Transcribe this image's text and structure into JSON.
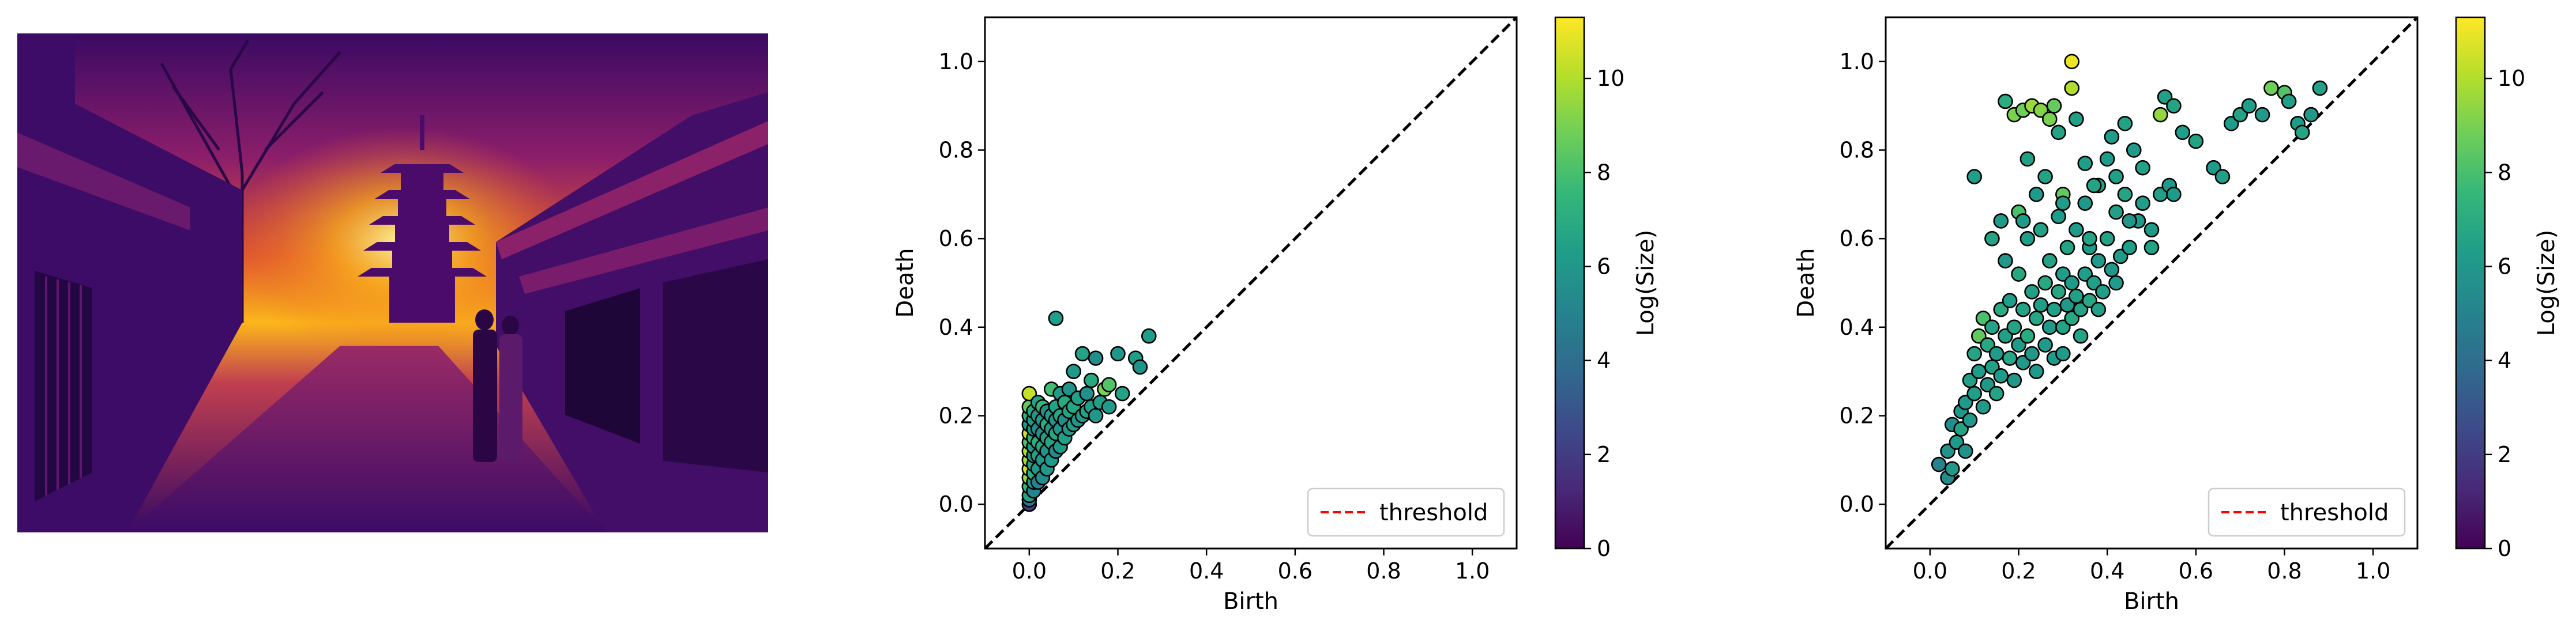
{
  "image_panel": {
    "description": "Photograph of a street with a pagoda at sunset, shown in inferno colormap",
    "palette": [
      "#000004",
      "#320a5e",
      "#781c6d",
      "#bc3754",
      "#ed6925",
      "#fbb61a",
      "#fcffa4"
    ]
  },
  "colors": {
    "threshold": "#ff0000",
    "diagonal": "#000000",
    "marker_edge": "#000000",
    "viridis": [
      "#440154",
      "#482878",
      "#3e4989",
      "#31688e",
      "#26828e",
      "#1f9e89",
      "#35b779",
      "#6ece58",
      "#b5de2b",
      "#fde725"
    ]
  },
  "chart_data": [
    {
      "type": "scatter",
      "title": "",
      "xlabel": "Birth",
      "ylabel": "Death",
      "xlim": [
        -0.1,
        1.1
      ],
      "ylim": [
        -0.1,
        1.1
      ],
      "xticks": [
        "0.0",
        "0.2",
        "0.4",
        "0.6",
        "0.8",
        "1.0"
      ],
      "yticks": [
        "0.0",
        "0.2",
        "0.4",
        "0.6",
        "0.8",
        "1.0"
      ],
      "diagonal": true,
      "legend": {
        "label": "threshold",
        "placement": "lower-right"
      },
      "colorbar": {
        "label": "Log(Size)",
        "range": [
          0,
          11.3
        ],
        "ticks": [
          "0",
          "2",
          "4",
          "6",
          "8",
          "10"
        ]
      },
      "points": [
        [
          0.0,
          0.0,
          2.0
        ],
        [
          0.0,
          0.01,
          4.5
        ],
        [
          0.0,
          0.02,
          6.5
        ],
        [
          0.0,
          0.04,
          7.5
        ],
        [
          0.0,
          0.06,
          9.5
        ],
        [
          0.0,
          0.08,
          10.5
        ],
        [
          0.0,
          0.1,
          9.8
        ],
        [
          0.0,
          0.12,
          10.0
        ],
        [
          0.0,
          0.14,
          8.0
        ],
        [
          0.0,
          0.16,
          10.5
        ],
        [
          0.0,
          0.18,
          6.0
        ],
        [
          0.0,
          0.2,
          7.0
        ],
        [
          0.0,
          0.22,
          8.5
        ],
        [
          0.0,
          0.25,
          10.3
        ],
        [
          0.01,
          0.03,
          5.0
        ],
        [
          0.01,
          0.05,
          6.0
        ],
        [
          0.01,
          0.07,
          7.0
        ],
        [
          0.01,
          0.09,
          6.5
        ],
        [
          0.01,
          0.11,
          5.5
        ],
        [
          0.01,
          0.13,
          6.0
        ],
        [
          0.01,
          0.15,
          7.2
        ],
        [
          0.01,
          0.17,
          5.8
        ],
        [
          0.01,
          0.19,
          6.2
        ],
        [
          0.01,
          0.21,
          6.8
        ],
        [
          0.02,
          0.05,
          5.0
        ],
        [
          0.02,
          0.08,
          6.0
        ],
        [
          0.02,
          0.11,
          6.5
        ],
        [
          0.02,
          0.14,
          7.0
        ],
        [
          0.02,
          0.17,
          5.5
        ],
        [
          0.02,
          0.2,
          6.0
        ],
        [
          0.02,
          0.23,
          6.5
        ],
        [
          0.03,
          0.06,
          5.5
        ],
        [
          0.03,
          0.1,
          6.0
        ],
        [
          0.03,
          0.13,
          6.8
        ],
        [
          0.03,
          0.16,
          5.6
        ],
        [
          0.03,
          0.19,
          6.2
        ],
        [
          0.03,
          0.22,
          7.5
        ],
        [
          0.04,
          0.08,
          6.0
        ],
        [
          0.04,
          0.12,
          5.8
        ],
        [
          0.04,
          0.15,
          6.4
        ],
        [
          0.04,
          0.18,
          6.9
        ],
        [
          0.04,
          0.21,
          5.7
        ],
        [
          0.05,
          0.1,
          6.1
        ],
        [
          0.05,
          0.14,
          6.6
        ],
        [
          0.05,
          0.17,
          5.9
        ],
        [
          0.05,
          0.2,
          6.3
        ],
        [
          0.05,
          0.26,
          7.8
        ],
        [
          0.06,
          0.12,
          5.4
        ],
        [
          0.06,
          0.16,
          6.7
        ],
        [
          0.06,
          0.19,
          6.0
        ],
        [
          0.06,
          0.22,
          6.5
        ],
        [
          0.06,
          0.42,
          6.3
        ],
        [
          0.07,
          0.13,
          6.2
        ],
        [
          0.07,
          0.17,
          5.9
        ],
        [
          0.07,
          0.2,
          6.8
        ],
        [
          0.07,
          0.25,
          6.1
        ],
        [
          0.08,
          0.15,
          6.4
        ],
        [
          0.08,
          0.19,
          5.6
        ],
        [
          0.08,
          0.23,
          6.9
        ],
        [
          0.09,
          0.17,
          6.0
        ],
        [
          0.09,
          0.21,
          6.6
        ],
        [
          0.09,
          0.26,
          5.8
        ],
        [
          0.1,
          0.18,
          6.3
        ],
        [
          0.1,
          0.22,
          6.7
        ],
        [
          0.1,
          0.3,
          6.0
        ],
        [
          0.11,
          0.19,
          5.9
        ],
        [
          0.11,
          0.24,
          6.4
        ],
        [
          0.12,
          0.2,
          6.2
        ],
        [
          0.12,
          0.34,
          6.5
        ],
        [
          0.13,
          0.21,
          6.6
        ],
        [
          0.13,
          0.25,
          5.7
        ],
        [
          0.14,
          0.22,
          6.3
        ],
        [
          0.14,
          0.28,
          6.8
        ],
        [
          0.15,
          0.2,
          6.0
        ],
        [
          0.15,
          0.33,
          5.5
        ],
        [
          0.16,
          0.23,
          6.4
        ],
        [
          0.17,
          0.26,
          9.0
        ],
        [
          0.18,
          0.22,
          6.1
        ],
        [
          0.18,
          0.27,
          8.2
        ],
        [
          0.2,
          0.34,
          5.9
        ],
        [
          0.21,
          0.25,
          6.5
        ],
        [
          0.24,
          0.33,
          6.3
        ],
        [
          0.25,
          0.31,
          5.8
        ],
        [
          0.27,
          0.38,
          6.2
        ]
      ]
    },
    {
      "type": "scatter",
      "title": "",
      "xlabel": "Birth",
      "ylabel": "Death",
      "xlim": [
        -0.1,
        1.1
      ],
      "ylim": [
        -0.1,
        1.1
      ],
      "xticks": [
        "0.0",
        "0.2",
        "0.4",
        "0.6",
        "0.8",
        "1.0"
      ],
      "yticks": [
        "0.0",
        "0.2",
        "0.4",
        "0.6",
        "0.8",
        "1.0"
      ],
      "diagonal": true,
      "legend": {
        "label": "threshold",
        "placement": "lower-right"
      },
      "colorbar": {
        "label": "Log(Size)",
        "range": [
          0,
          11.3
        ],
        "ticks": [
          "0",
          "2",
          "4",
          "6",
          "8",
          "10"
        ]
      },
      "points": [
        [
          0.02,
          0.09,
          5.0
        ],
        [
          0.04,
          0.06,
          5.5
        ],
        [
          0.04,
          0.12,
          5.8
        ],
        [
          0.05,
          0.18,
          5.6
        ],
        [
          0.05,
          0.08,
          6.0
        ],
        [
          0.06,
          0.14,
          6.2
        ],
        [
          0.07,
          0.21,
          5.9
        ],
        [
          0.07,
          0.17,
          6.5
        ],
        [
          0.08,
          0.23,
          6.1
        ],
        [
          0.08,
          0.12,
          5.7
        ],
        [
          0.09,
          0.28,
          6.4
        ],
        [
          0.09,
          0.19,
          6.0
        ],
        [
          0.1,
          0.34,
          6.6
        ],
        [
          0.1,
          0.25,
          6.3
        ],
        [
          0.11,
          0.38,
          8.5
        ],
        [
          0.11,
          0.3,
          6.2
        ],
        [
          0.12,
          0.42,
          8.0
        ],
        [
          0.12,
          0.22,
          6.1
        ],
        [
          0.13,
          0.36,
          6.8
        ],
        [
          0.13,
          0.27,
          6.0
        ],
        [
          0.14,
          0.4,
          6.5
        ],
        [
          0.14,
          0.31,
          6.4
        ],
        [
          0.15,
          0.34,
          6.1
        ],
        [
          0.15,
          0.25,
          6.6
        ],
        [
          0.16,
          0.44,
          6.9
        ],
        [
          0.16,
          0.29,
          6.2
        ],
        [
          0.17,
          0.38,
          6.4
        ],
        [
          0.17,
          0.55,
          6.0
        ],
        [
          0.18,
          0.33,
          6.7
        ],
        [
          0.18,
          0.46,
          6.3
        ],
        [
          0.19,
          0.28,
          6.0
        ],
        [
          0.19,
          0.4,
          6.6
        ],
        [
          0.2,
          0.36,
          6.2
        ],
        [
          0.2,
          0.52,
          6.8
        ],
        [
          0.21,
          0.32,
          6.1
        ],
        [
          0.21,
          0.44,
          6.5
        ],
        [
          0.22,
          0.38,
          6.9
        ],
        [
          0.22,
          0.6,
          6.3
        ],
        [
          0.23,
          0.34,
          6.0
        ],
        [
          0.23,
          0.48,
          6.4
        ],
        [
          0.24,
          0.42,
          6.7
        ],
        [
          0.24,
          0.3,
          6.1
        ],
        [
          0.25,
          0.45,
          6.3
        ],
        [
          0.25,
          0.62,
          6.5
        ],
        [
          0.26,
          0.36,
          6.2
        ],
        [
          0.26,
          0.5,
          6.8
        ],
        [
          0.27,
          0.4,
          6.0
        ],
        [
          0.27,
          0.55,
          6.6
        ],
        [
          0.28,
          0.44,
          6.4
        ],
        [
          0.28,
          0.33,
          6.1
        ],
        [
          0.29,
          0.48,
          6.7
        ],
        [
          0.29,
          0.65,
          6.2
        ],
        [
          0.3,
          0.4,
          6.5
        ],
        [
          0.3,
          0.52,
          6.3
        ],
        [
          0.31,
          0.45,
          6.0
        ],
        [
          0.31,
          0.58,
          6.6
        ],
        [
          0.32,
          0.42,
          6.8
        ],
        [
          0.32,
          0.5,
          6.2
        ],
        [
          0.33,
          0.47,
          6.4
        ],
        [
          0.33,
          0.62,
          6.1
        ],
        [
          0.34,
          0.44,
          6.5
        ],
        [
          0.35,
          0.52,
          6.3
        ],
        [
          0.35,
          0.68,
          6.0
        ],
        [
          0.36,
          0.46,
          6.7
        ],
        [
          0.36,
          0.58,
          6.2
        ],
        [
          0.37,
          0.5,
          6.4
        ],
        [
          0.38,
          0.55,
          6.1
        ],
        [
          0.38,
          0.72,
          6.6
        ],
        [
          0.39,
          0.48,
          6.3
        ],
        [
          0.4,
          0.6,
          6.5
        ],
        [
          0.41,
          0.53,
          6.0
        ],
        [
          0.42,
          0.66,
          6.4
        ],
        [
          0.43,
          0.56,
          6.2
        ],
        [
          0.44,
          0.7,
          6.6
        ],
        [
          0.45,
          0.58,
          6.3
        ],
        [
          0.47,
          0.64,
          6.1
        ],
        [
          0.48,
          0.76,
          6.5
        ],
        [
          0.5,
          0.62,
          6.2
        ],
        [
          0.52,
          0.7,
          6.4
        ],
        [
          0.54,
          0.72,
          6.0
        ],
        [
          0.17,
          0.91,
          7.0
        ],
        [
          0.19,
          0.88,
          9.0
        ],
        [
          0.21,
          0.89,
          8.8
        ],
        [
          0.23,
          0.9,
          9.6
        ],
        [
          0.25,
          0.89,
          9.2
        ],
        [
          0.27,
          0.87,
          9.0
        ],
        [
          0.28,
          0.9,
          8.6
        ],
        [
          0.32,
          1.0,
          11.0
        ],
        [
          0.32,
          0.94,
          10.0
        ],
        [
          0.2,
          0.66,
          8.0
        ],
        [
          0.21,
          0.64,
          6.2
        ],
        [
          0.3,
          0.7,
          8.5
        ],
        [
          0.29,
          0.84,
          6.5
        ],
        [
          0.33,
          0.87,
          6.4
        ],
        [
          0.35,
          0.77,
          6.3
        ],
        [
          0.37,
          0.72,
          6.6
        ],
        [
          0.41,
          0.83,
          6.2
        ],
        [
          0.44,
          0.86,
          6.5
        ],
        [
          0.46,
          0.8,
          6.1
        ],
        [
          0.52,
          0.88,
          9.5
        ],
        [
          0.53,
          0.92,
          6.4
        ],
        [
          0.55,
          0.9,
          6.6
        ],
        [
          0.57,
          0.84,
          6.3
        ],
        [
          0.6,
          0.82,
          6.5
        ],
        [
          0.64,
          0.76,
          6.1
        ],
        [
          0.66,
          0.74,
          6.4
        ],
        [
          0.68,
          0.86,
          6.2
        ],
        [
          0.7,
          0.88,
          6.5
        ],
        [
          0.72,
          0.9,
          6.3
        ],
        [
          0.75,
          0.88,
          6.1
        ],
        [
          0.77,
          0.94,
          8.8
        ],
        [
          0.8,
          0.93,
          8.2
        ],
        [
          0.81,
          0.91,
          6.4
        ],
        [
          0.83,
          0.86,
          6.2
        ],
        [
          0.84,
          0.84,
          6.6
        ],
        [
          0.86,
          0.88,
          6.0
        ],
        [
          0.88,
          0.94,
          6.5
        ],
        [
          0.1,
          0.74,
          6.3
        ],
        [
          0.14,
          0.6,
          6.6
        ],
        [
          0.16,
          0.64,
          6.2
        ],
        [
          0.22,
          0.78,
          6.4
        ],
        [
          0.24,
          0.7,
          6.1
        ],
        [
          0.26,
          0.74,
          6.5
        ],
        [
          0.3,
          0.68,
          6.3
        ],
        [
          0.36,
          0.6,
          6.6
        ],
        [
          0.4,
          0.78,
          6.2
        ],
        [
          0.42,
          0.74,
          6.4
        ],
        [
          0.45,
          0.64,
          6.0
        ],
        [
          0.48,
          0.68,
          6.3
        ],
        [
          0.5,
          0.58,
          6.5
        ],
        [
          0.55,
          0.7,
          6.2
        ],
        [
          0.42,
          0.5,
          6.1
        ],
        [
          0.38,
          0.44,
          6.4
        ],
        [
          0.34,
          0.38,
          6.6
        ],
        [
          0.3,
          0.34,
          6.2
        ]
      ]
    }
  ]
}
